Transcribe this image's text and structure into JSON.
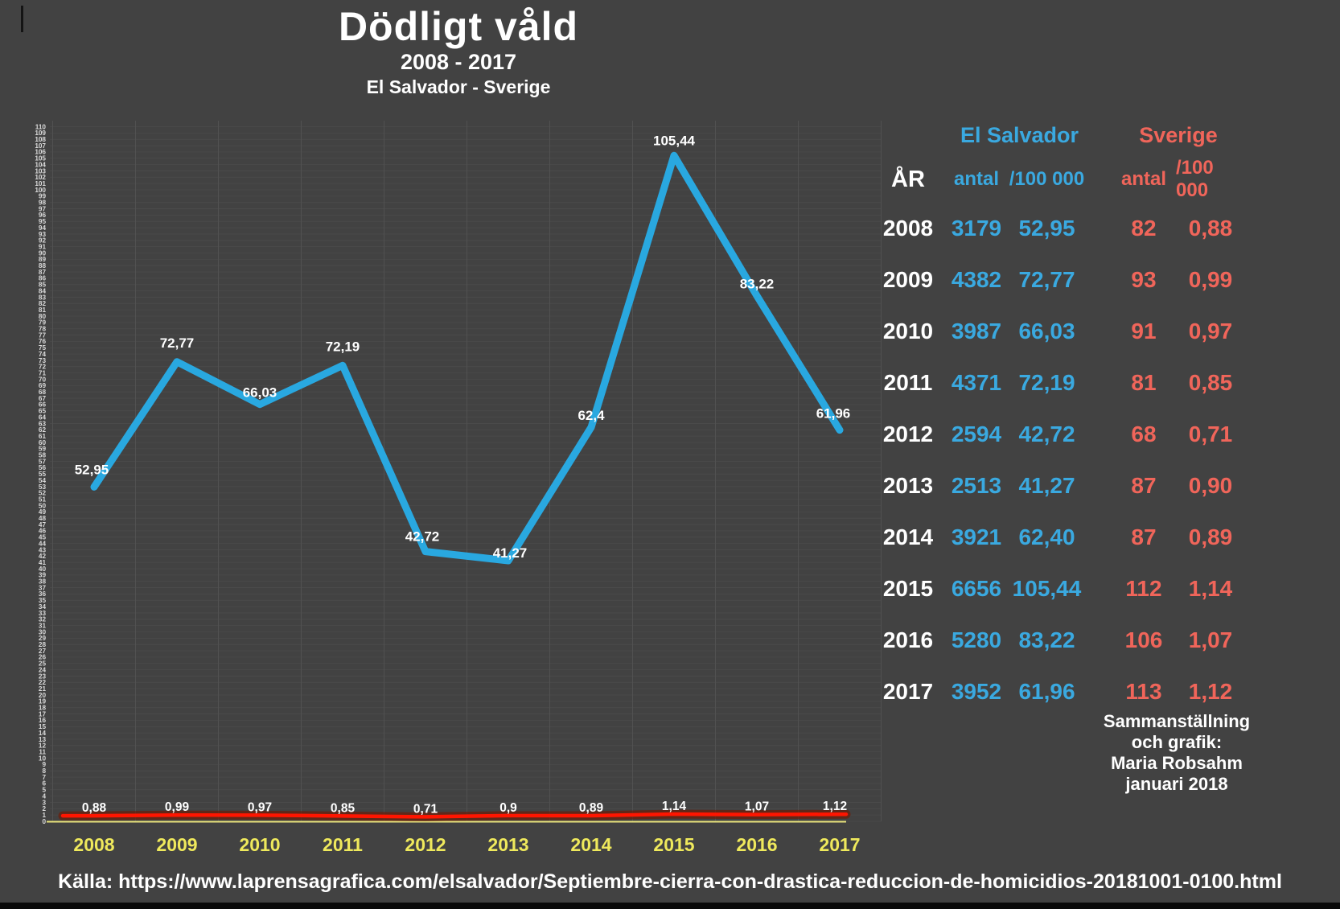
{
  "page": {
    "background": "#424242",
    "bottom_bar_color": "#0a0a0a"
  },
  "title": {
    "main": "Dödligt våld",
    "period": "2008 - 2017",
    "subtitle": "El Salvador - Sverige"
  },
  "chart_data": {
    "type": "line",
    "title": "Dödligt våld 2008 - 2017, El Salvador - Sverige",
    "categories": [
      "2008",
      "2009",
      "2010",
      "2011",
      "2012",
      "2013",
      "2014",
      "2015",
      "2016",
      "2017"
    ],
    "ylim": [
      0,
      110
    ],
    "ytick_step": 1,
    "grid": true,
    "xaxis_line_color": "#E9E47C",
    "xtick_label_color": "#EFE95C",
    "ytick_label_color": "#DCDCDC",
    "series": [
      {
        "name": "El Salvador",
        "unit": "/100 000",
        "color": "#29A8E0",
        "values": [
          52.95,
          72.77,
          66.03,
          72.19,
          42.72,
          41.27,
          62.4,
          105.44,
          83.22,
          61.96
        ],
        "labels": [
          "52,95",
          "72,77",
          "66,03",
          "72,19",
          "42,72",
          "41,27",
          "62,4",
          "105,44",
          "83,22",
          "61,96"
        ]
      },
      {
        "name": "Sverige",
        "unit": "/100 000",
        "color": "#FF1500",
        "values": [
          0.88,
          0.99,
          0.97,
          0.85,
          0.71,
          0.9,
          0.89,
          1.14,
          1.07,
          1.12
        ],
        "labels": [
          "0,88",
          "0,99",
          "0,97",
          "0,85",
          "0,71",
          "0,9",
          "0,89",
          "1,14",
          "1,07",
          "1,12"
        ]
      }
    ],
    "data_label_color": "#ffffff"
  },
  "table": {
    "year_header": "ÅR",
    "group1": "El Salvador",
    "group2": "Sverige",
    "sub1_antal": "antal",
    "sub1_rate": "/100 000",
    "sub2_antal": "antal",
    "sub2_rate": "/100 000",
    "group1_color": "#3AA9E0",
    "group2_color": "#F0655A",
    "rows": [
      {
        "year": "2008",
        "es_antal": "3179",
        "es_rate": "52,95",
        "se_antal": "82",
        "se_rate": "0,88"
      },
      {
        "year": "2009",
        "es_antal": "4382",
        "es_rate": "72,77",
        "se_antal": "93",
        "se_rate": "0,99"
      },
      {
        "year": "2010",
        "es_antal": "3987",
        "es_rate": "66,03",
        "se_antal": "91",
        "se_rate": "0,97"
      },
      {
        "year": "2011",
        "es_antal": "4371",
        "es_rate": "72,19",
        "se_antal": "81",
        "se_rate": "0,85"
      },
      {
        "year": "2012",
        "es_antal": "2594",
        "es_rate": "42,72",
        "se_antal": "68",
        "se_rate": "0,71"
      },
      {
        "year": "2013",
        "es_antal": "2513",
        "es_rate": "41,27",
        "se_antal": "87",
        "se_rate": "0,90"
      },
      {
        "year": "2014",
        "es_antal": "3921",
        "es_rate": "62,40",
        "se_antal": "87",
        "se_rate": "0,89"
      },
      {
        "year": "2015",
        "es_antal": "6656",
        "es_rate": "105,44",
        "se_antal": "112",
        "se_rate": "1,14"
      },
      {
        "year": "2016",
        "es_antal": "5280",
        "es_rate": "83,22",
        "se_antal": "106",
        "se_rate": "1,07"
      },
      {
        "year": "2017",
        "es_antal": "3952",
        "es_rate": "61,96",
        "se_antal": "113",
        "se_rate": "1,12"
      }
    ]
  },
  "credit": {
    "lines": [
      "Sammanställning",
      "och grafik:",
      "Maria Robsahm",
      "januari 2018"
    ]
  },
  "source": {
    "text": "Källa: https://www.laprensagrafica.com/elsalvador/Septiembre-cierra-con-drastica-reduccion-de-homicidios-20181001-0100.html"
  }
}
